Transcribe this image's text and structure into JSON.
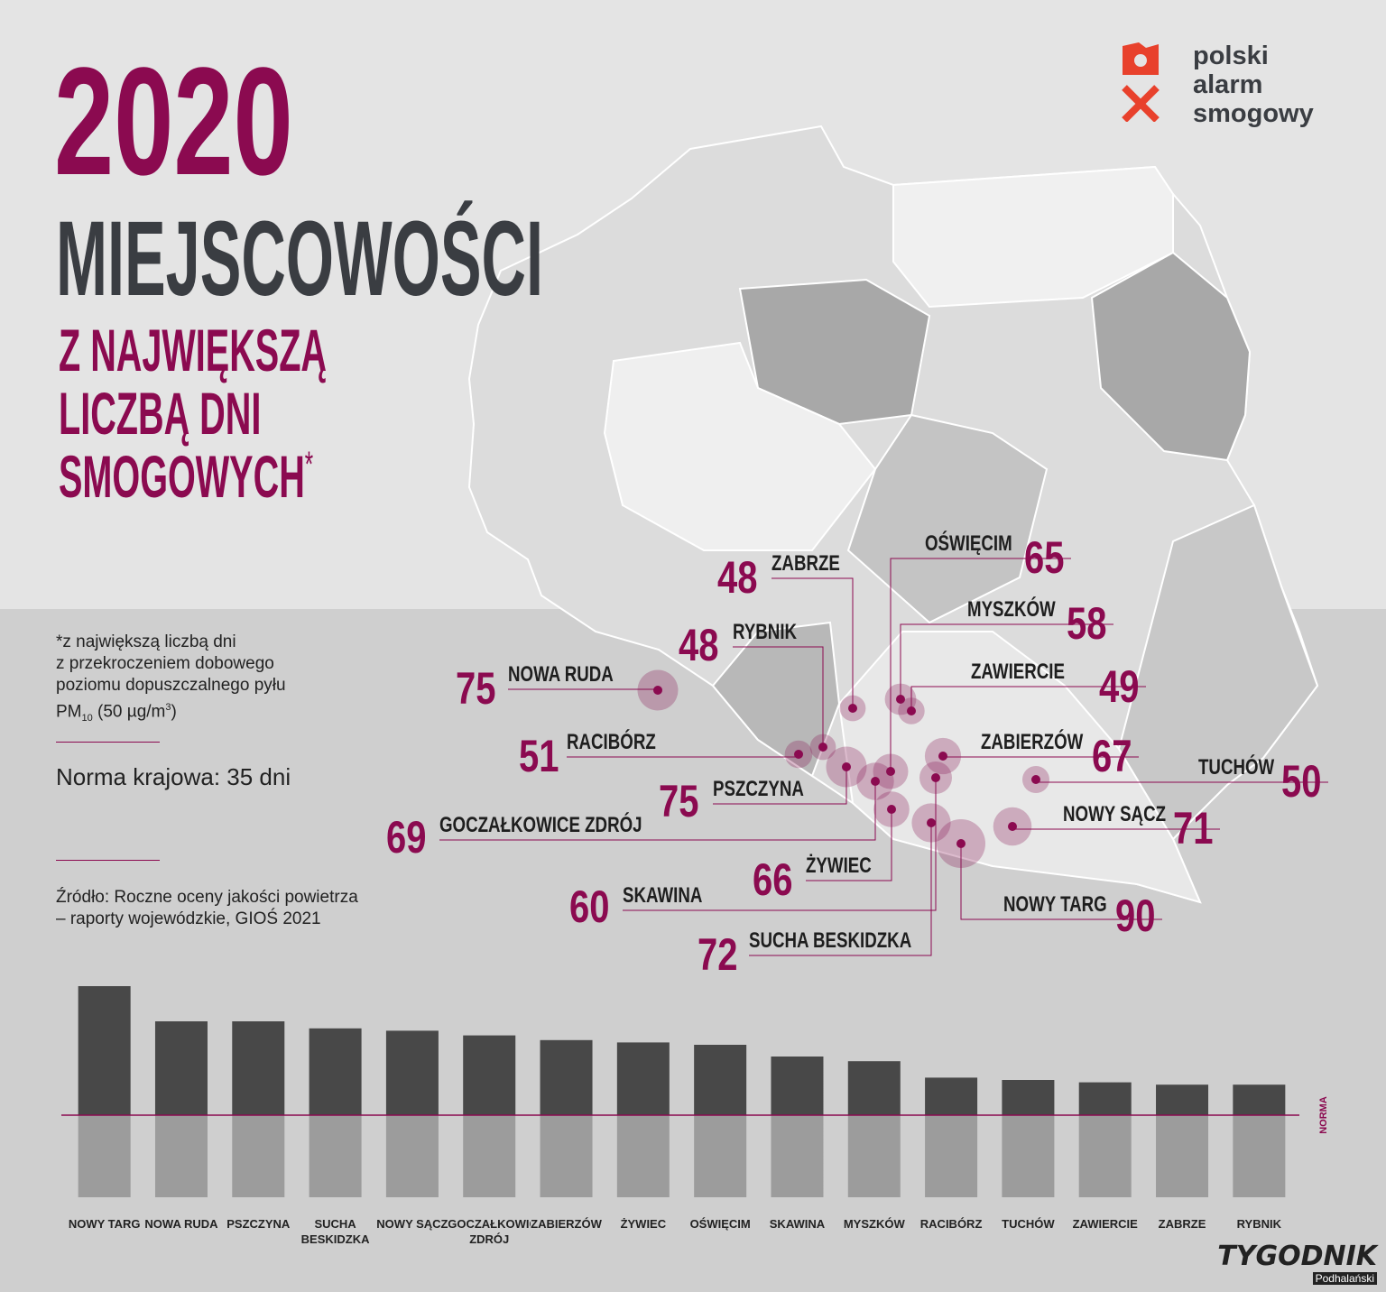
{
  "header": {
    "year": "2020",
    "title": "MIEJSCOWOŚCI",
    "subtitle_lines": [
      "Z NAJWIĘKSZĄ",
      "LICZBĄ DNI",
      "SMOGOWYCH"
    ],
    "asterisk": "*"
  },
  "logo": {
    "lines": [
      "polski",
      "alarm",
      "smogowy"
    ]
  },
  "footnote": {
    "lines": [
      "*z największą liczbą dni",
      "z przekroczeniem dobowego",
      "poziomu dopuszczalnego pyłu"
    ],
    "pm": {
      "text": "PM",
      "sub": "10",
      "rest": " (50 µg/m",
      "sup": "3",
      "end": ")"
    }
  },
  "norm_text": "Norma krajowa: 35 dni",
  "source_lines": [
    "Źródło: Roczne oceny jakości powietrza",
    "– raporty wojewódzkie, GIOŚ 2021"
  ],
  "map": {
    "cities": [
      {
        "name": "ZABRZE",
        "value": 48
      },
      {
        "name": "OŚWIĘCIM",
        "value": 65
      },
      {
        "name": "MYSZKÓW",
        "value": 58
      },
      {
        "name": "RYBNIK",
        "value": 48
      },
      {
        "name": "NOWA RUDA",
        "value": 75
      },
      {
        "name": "ZAWIERCIE",
        "value": 49
      },
      {
        "name": "RACIBÓRZ",
        "value": 51
      },
      {
        "name": "ZABIERZÓW",
        "value": 67
      },
      {
        "name": "TUCHÓW",
        "value": 50
      },
      {
        "name": "PSZCZYNA",
        "value": 75
      },
      {
        "name": "NOWY SĄCZ",
        "value": 71
      },
      {
        "name": "GOCZAŁKOWICE ZDRÓJ",
        "value": 69
      },
      {
        "name": "ŻYWIEC",
        "value": 66
      },
      {
        "name": "SKAWINA",
        "value": 60
      },
      {
        "name": "NOWY TARG",
        "value": 90
      },
      {
        "name": "SUCHA BESKIDZKA",
        "value": 72
      }
    ]
  },
  "chart_data": {
    "type": "bar",
    "categories": [
      "NOWY TARG",
      "NOWA RUDA",
      "PSZCZYNA",
      "SUCHA BESKIDZKA",
      "NOWY SĄCZ",
      "GOCZAŁKOWICE ZDRÓJ",
      "ZABIERZÓW",
      "ŻYWIEC",
      "OŚWIĘCIM",
      "SKAWINA",
      "MYSZKÓW",
      "RACIBÓRZ",
      "TUCHÓW",
      "ZAWIERCIE",
      "ZABRZE",
      "RYBNIK"
    ],
    "values": [
      90,
      75,
      75,
      72,
      71,
      69,
      67,
      66,
      65,
      60,
      58,
      51,
      50,
      49,
      48,
      48
    ],
    "color": "#484848",
    "below_norm_color": "#9c9c9c",
    "ylim": [
      0,
      90
    ],
    "norm": 35,
    "norm_label": "NORMA",
    "norm_color": "#8b0a50"
  },
  "watermark": {
    "brand": "TYGODNIK",
    "sub": "Podhalański"
  }
}
